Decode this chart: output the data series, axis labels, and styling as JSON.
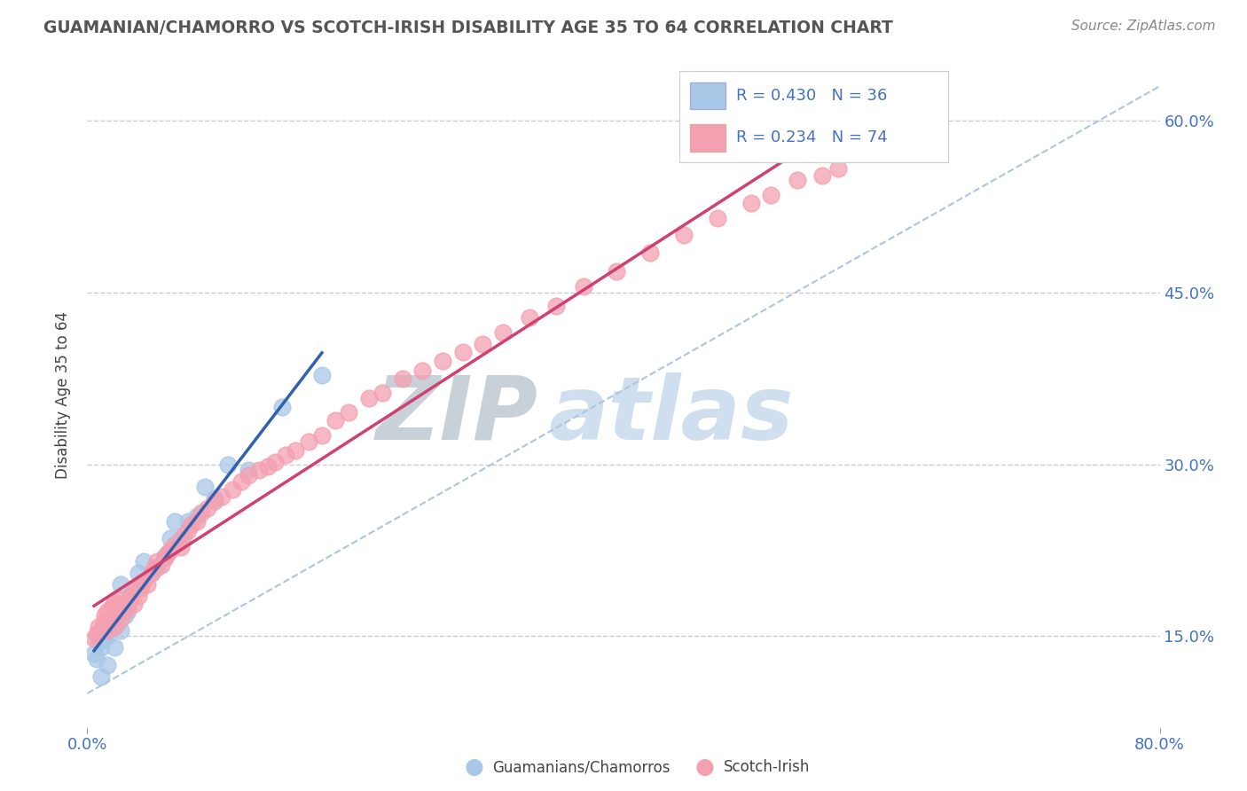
{
  "title": "GUAMANIAN/CHAMORRO VS SCOTCH-IRISH DISABILITY AGE 35 TO 64 CORRELATION CHART",
  "source": "Source: ZipAtlas.com",
  "ylabel_label": "Disability Age 35 to 64",
  "legend_blue_label": "Guamanians/Chamorros",
  "legend_pink_label": "Scotch-Irish",
  "legend_blue_r": "R = 0.430",
  "legend_blue_n": "N = 36",
  "legend_pink_r": "R = 0.234",
  "legend_pink_n": "N = 74",
  "blue_color": "#a8c8e8",
  "pink_color": "#f4a0b0",
  "blue_line_color": "#3060b0",
  "pink_line_color": "#d04070",
  "watermark_color": "#d0dff0",
  "xlim": [
    0.0,
    0.8
  ],
  "ylim": [
    0.07,
    0.65
  ],
  "ytick_vals": [
    0.15,
    0.3,
    0.45,
    0.6
  ],
  "ytick_labels": [
    "15.0%",
    "30.0%",
    "45.0%",
    "60.0%"
  ],
  "blue_scatter_x": [
    0.005,
    0.007,
    0.008,
    0.01,
    0.01,
    0.012,
    0.013,
    0.015,
    0.015,
    0.018,
    0.02,
    0.02,
    0.022,
    0.025,
    0.025,
    0.028,
    0.03,
    0.032,
    0.035,
    0.038,
    0.04,
    0.042,
    0.048,
    0.052,
    0.058,
    0.062,
    0.065,
    0.07,
    0.075,
    0.082,
    0.088,
    0.095,
    0.105,
    0.12,
    0.145,
    0.175
  ],
  "blue_scatter_y": [
    0.135,
    0.13,
    0.145,
    0.115,
    0.14,
    0.148,
    0.155,
    0.125,
    0.15,
    0.158,
    0.14,
    0.165,
    0.16,
    0.155,
    0.195,
    0.168,
    0.172,
    0.185,
    0.19,
    0.205,
    0.195,
    0.215,
    0.205,
    0.21,
    0.22,
    0.235,
    0.25,
    0.235,
    0.25,
    0.255,
    0.28,
    0.27,
    0.3,
    0.295,
    0.35,
    0.378
  ],
  "pink_scatter_x": [
    0.005,
    0.007,
    0.008,
    0.01,
    0.012,
    0.013,
    0.015,
    0.015,
    0.017,
    0.018,
    0.02,
    0.02,
    0.022,
    0.022,
    0.025,
    0.025,
    0.028,
    0.03,
    0.032,
    0.035,
    0.035,
    0.038,
    0.04,
    0.042,
    0.045,
    0.048,
    0.05,
    0.052,
    0.055,
    0.058,
    0.06,
    0.062,
    0.065,
    0.07,
    0.072,
    0.075,
    0.078,
    0.082,
    0.085,
    0.09,
    0.095,
    0.1,
    0.108,
    0.115,
    0.12,
    0.128,
    0.135,
    0.14,
    0.148,
    0.155,
    0.165,
    0.175,
    0.185,
    0.195,
    0.21,
    0.22,
    0.235,
    0.25,
    0.265,
    0.28,
    0.295,
    0.31,
    0.33,
    0.35,
    0.37,
    0.395,
    0.42,
    0.445,
    0.47,
    0.495,
    0.51,
    0.53,
    0.548,
    0.56
  ],
  "pink_scatter_y": [
    0.148,
    0.152,
    0.158,
    0.155,
    0.162,
    0.168,
    0.155,
    0.172,
    0.162,
    0.175,
    0.158,
    0.18,
    0.168,
    0.178,
    0.165,
    0.182,
    0.172,
    0.175,
    0.185,
    0.178,
    0.192,
    0.185,
    0.192,
    0.198,
    0.195,
    0.205,
    0.21,
    0.215,
    0.212,
    0.218,
    0.222,
    0.225,
    0.23,
    0.228,
    0.238,
    0.242,
    0.248,
    0.25,
    0.258,
    0.262,
    0.268,
    0.272,
    0.278,
    0.285,
    0.29,
    0.295,
    0.298,
    0.302,
    0.308,
    0.312,
    0.32,
    0.325,
    0.338,
    0.345,
    0.358,
    0.362,
    0.375,
    0.382,
    0.39,
    0.398,
    0.405,
    0.415,
    0.428,
    0.438,
    0.455,
    0.468,
    0.485,
    0.5,
    0.515,
    0.528,
    0.535,
    0.548,
    0.552,
    0.558
  ]
}
